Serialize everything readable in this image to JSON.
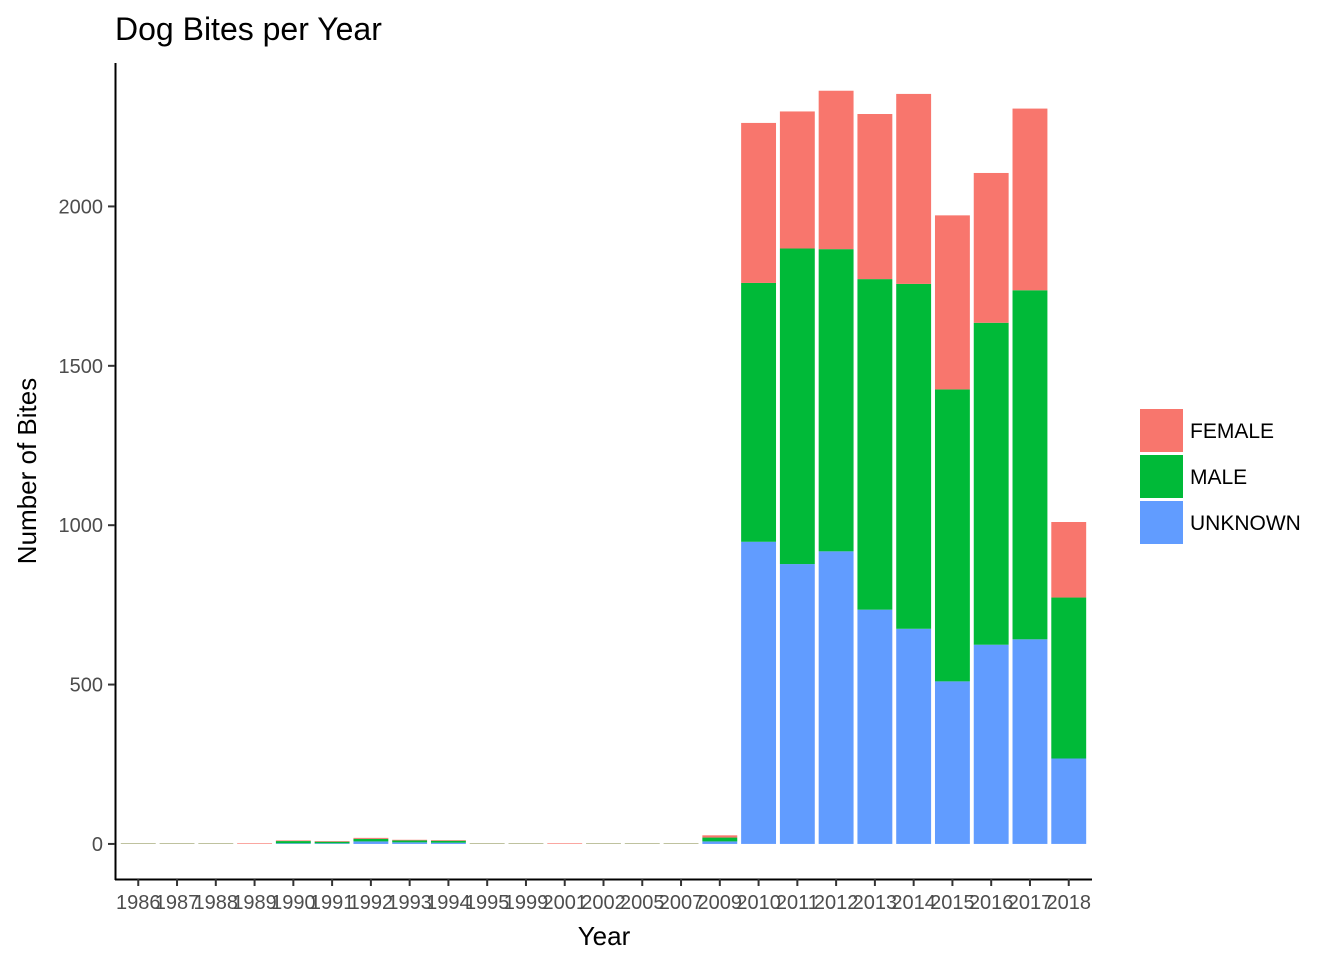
{
  "chart_data": {
    "type": "bar",
    "stacked": true,
    "title": "Dog Bites per Year",
    "xlabel": "Year",
    "ylabel": "Number of Bites",
    "categories": [
      "1986",
      "1987",
      "1988",
      "1989",
      "1990",
      "1991",
      "1992",
      "1993",
      "1994",
      "1995",
      "1999",
      "2001",
      "2002",
      "2005",
      "2007",
      "2009",
      "2010",
      "2011",
      "2012",
      "2013",
      "2014",
      "2015",
      "2016",
      "2017",
      "2018"
    ],
    "series": [
      {
        "name": "UNKNOWN",
        "color": "#619CFF",
        "values": [
          0,
          0,
          0,
          0,
          2,
          2,
          8,
          5,
          4,
          0,
          0,
          0,
          0,
          0,
          0,
          8,
          948,
          878,
          918,
          735,
          675,
          510,
          625,
          642,
          268
        ]
      },
      {
        "name": "MALE",
        "color": "#00BA38",
        "values": [
          1,
          1,
          1,
          0,
          7,
          5,
          8,
          6,
          6,
          1,
          1,
          0,
          1,
          1,
          1,
          12,
          812,
          990,
          948,
          1037,
          1082,
          916,
          1010,
          1095,
          505
        ]
      },
      {
        "name": "FEMALE",
        "color": "#F8766D",
        "values": [
          1,
          1,
          1,
          2,
          2,
          2,
          3,
          2,
          2,
          1,
          1,
          2,
          1,
          1,
          1,
          7,
          502,
          430,
          497,
          518,
          596,
          546,
          470,
          570,
          237
        ]
      }
    ],
    "ylim": [
      -110,
      2450
    ],
    "yticks": [
      0,
      500,
      1000,
      1500,
      2000
    ],
    "legend_position": "right",
    "grid": false
  }
}
